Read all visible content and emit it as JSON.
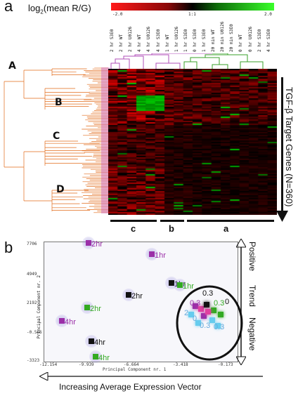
{
  "panel_a": {
    "letter": "a",
    "scale": {
      "title_prefix": "log",
      "title_sub": "2",
      "title_suffix": "(mean R/G)",
      "ticks": [
        "-2.0",
        "1:1",
        "2.0"
      ],
      "colors": {
        "low": "#ff1a1a",
        "mid": "#000000",
        "high": "#39ff2a"
      }
    },
    "columns": [
      "2 hr S3E0",
      "2 hr WT",
      "2 hr U0126",
      "4 hr WT",
      "4 hr U0126",
      "4 hr S3E0",
      "1 hr WT",
      "1 hr U0126",
      "1 hr S3E0",
      "0 hr S3E0",
      "1 hr S3E0",
      "20 min WT",
      "20 min U0126",
      "20 min S3E0",
      "0 hr WT",
      "0 hr U0126",
      "2 hr S3E0",
      "4 hr S3E0"
    ],
    "clusters": [
      "A",
      "B",
      "C",
      "D"
    ],
    "groups": [
      "c",
      "b",
      "a"
    ],
    "y_label": "TGF-β Target Genes (N=360)",
    "colors": {
      "dendrogram": "#e26b1a",
      "leaf": "#c040c0"
    }
  },
  "panel_b": {
    "letter": "b",
    "axes": {
      "xlabel": "Principal Component nr. 1",
      "ylabel": "Principal Component nr. 2",
      "xticks": [
        "-12.154",
        "-9.939",
        "-6.664",
        "-3.418",
        "-0.173"
      ],
      "yticks": [
        "7706",
        "4949",
        "2192",
        "-0.566",
        "-3323"
      ]
    },
    "points": [
      {
        "label": "2hr",
        "color": "#9b2fa8"
      },
      {
        "label": "1hr",
        "color": "#9b2fa8"
      },
      {
        "label": "2hr",
        "color": "#111111"
      },
      {
        "label": "1hr",
        "color": "#111111"
      },
      {
        "label": "1hr",
        "color": "#33aa22"
      },
      {
        "label": "2hr",
        "color": "#33aa22"
      },
      {
        "label": "4hr",
        "color": "#9b2fa8"
      },
      {
        "label": "4hr",
        "color": "#111111"
      },
      {
        "label": "4hr",
        "color": "#33aa22"
      }
    ],
    "circle_labels": [
      "0.3",
      "0.3",
      "0.3",
      "0",
      "2",
      "0",
      "0.3",
      "0.3"
    ],
    "trend": {
      "positive": "Positive",
      "trend": "Trend",
      "negative": "Negative"
    },
    "bottom_label": "Increasing Average Expression Vector"
  }
}
